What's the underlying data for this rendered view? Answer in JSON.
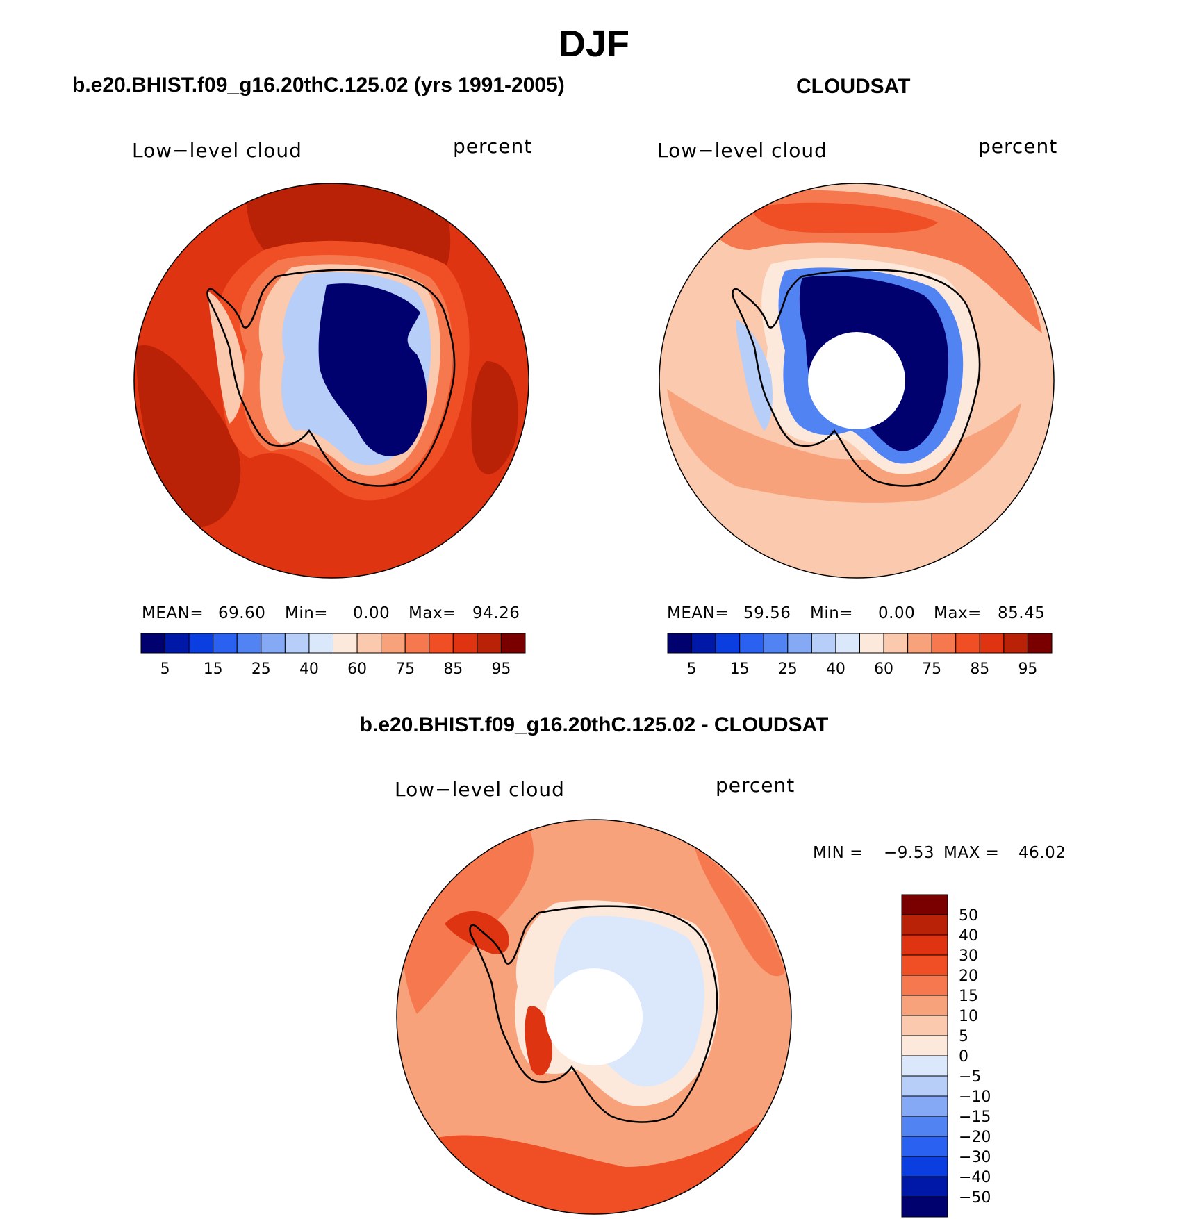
{
  "title": "DJF",
  "panels": [
    {
      "id": "model",
      "title": "b.e20.BHIST.f09_g16.20thC.125.02 (yrs 1991-2005)",
      "variable": "Low−level cloud",
      "units": "percent",
      "stats": {
        "mean_label": "MEAN=",
        "mean": "69.60",
        "min_label": "Min=",
        "min": "0.00",
        "max_label": "Max=",
        "max": "94.26"
      }
    },
    {
      "id": "obs",
      "title": "CLOUDSAT",
      "variable": "Low−level cloud",
      "units": "percent",
      "stats": {
        "mean_label": "MEAN=",
        "mean": "59.56",
        "min_label": "Min=",
        "min": "0.00",
        "max_label": "Max=",
        "max": "85.45"
      }
    },
    {
      "id": "diff",
      "title": "b.e20.BHIST.f09_g16.20thC.125.02 - CLOUDSAT",
      "variable": "Low−level cloud",
      "units": "percent",
      "stats": {
        "min_label": "MIN =",
        "min": "−9.53",
        "max_label": "MAX =",
        "max": "46.02"
      }
    }
  ],
  "chart_data": [
    {
      "type": "heatmap",
      "projection": "south-polar-stereographic",
      "title": "b.e20.BHIST.f09_g16.20thC.125.02 (yrs 1991-2005)",
      "variable": "Low-level cloud",
      "units": "percent",
      "mean": 69.6,
      "min": 0.0,
      "max": 94.26,
      "colorbar_levels": [
        5,
        10,
        15,
        20,
        25,
        30,
        40,
        50,
        60,
        70,
        75,
        80,
        85,
        90,
        95
      ],
      "colorbar_tick_labels": [
        "5",
        "15",
        "25",
        "40",
        "60",
        "75",
        "85",
        "95"
      ],
      "colorbar_colors": [
        "#00006e",
        "#0018a8",
        "#0b3ee0",
        "#2b61f0",
        "#5283f3",
        "#86a9f6",
        "#b6cef8",
        "#dbe8fb",
        "#fde9dc",
        "#fbc9ad",
        "#f8a27c",
        "#f5784f",
        "#f04f25",
        "#df3412",
        "#b92206",
        "#7a0000"
      ],
      "field_description": "Antarctic continent interior about 0-5, coast about 25-60, Southern Ocean 80-95",
      "region_fill_levels": {
        "ocean_outer": 85,
        "ocean_high": 90,
        "coastal_ring": 75,
        "continent_edge": 25,
        "continent_interior": 5
      }
    },
    {
      "type": "heatmap",
      "projection": "south-polar-stereographic",
      "title": "CLOUDSAT",
      "variable": "Low-level cloud",
      "units": "percent",
      "mean": 59.56,
      "min": 0.0,
      "max": 85.45,
      "colorbar_levels": [
        5,
        10,
        15,
        20,
        25,
        30,
        40,
        50,
        60,
        70,
        75,
        80,
        85,
        90,
        95
      ],
      "colorbar_tick_labels": [
        "5",
        "15",
        "25",
        "40",
        "60",
        "75",
        "85",
        "95"
      ],
      "colorbar_colors": [
        "#00006e",
        "#0018a8",
        "#0b3ee0",
        "#2b61f0",
        "#5283f3",
        "#86a9f6",
        "#b6cef8",
        "#dbe8fb",
        "#fde9dc",
        "#fbc9ad",
        "#f8a27c",
        "#f5784f",
        "#f04f25",
        "#df3412",
        "#b92206",
        "#7a0000"
      ],
      "field_description": "East Antarctic interior about 0-5, ocean mostly 60-85, pole hole missing data",
      "region_fill_levels": {
        "ocean_outer": 60,
        "ocean_band": 75,
        "ocean_high": 80,
        "continent_edge": 25,
        "continent_interior": 5
      }
    },
    {
      "type": "heatmap",
      "projection": "south-polar-stereographic",
      "title": "b.e20.BHIST.f09_g16.20thC.125.02 - CLOUDSAT",
      "variable": "Low-level cloud",
      "units": "percent",
      "min": -9.53,
      "max": 46.02,
      "colorbar_levels": [
        -50,
        -40,
        -30,
        -20,
        -15,
        -10,
        -5,
        0,
        5,
        10,
        15,
        20,
        30,
        40,
        50
      ],
      "colorbar_tick_labels": [
        "50",
        "40",
        "30",
        "20",
        "15",
        "10",
        "5",
        "0",
        "−5",
        "−10",
        "−15",
        "−20",
        "−30",
        "−40",
        "−50"
      ],
      "colorbar_colors": [
        "#7a0000",
        "#b92206",
        "#df3412",
        "#f04f25",
        "#f5784f",
        "#f8a27c",
        "#fbc9ad",
        "#fde9dc",
        "#dbe8fb",
        "#b6cef8",
        "#86a9f6",
        "#5283f3",
        "#2b61f0",
        "#0b3ee0",
        "#0018a8",
        "#00006e"
      ],
      "field_description": "Ocean mostly +10 to +30, continent interior about -5 to 0, peninsula up to +40",
      "region_fill_levels": {
        "ocean_outer": 20,
        "ocean_band": 15,
        "ocean_mid": 10,
        "peninsula": 30,
        "continent_interior": -5
      }
    }
  ]
}
